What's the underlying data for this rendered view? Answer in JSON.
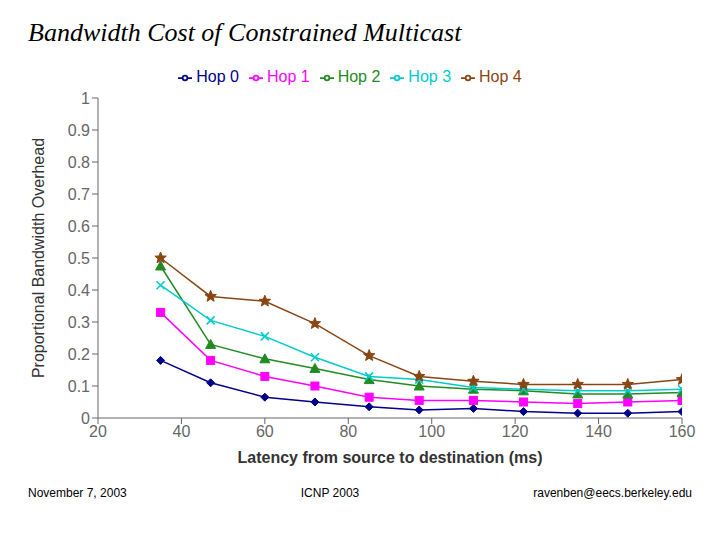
{
  "chart_data": {
    "type": "line",
    "title": "Bandwidth Cost of Constrained Multicast",
    "xlabel": "Latency from source to destination (ms)",
    "ylabel": "Proportional Bandwidth Overhead",
    "annotations": [
      "November 7, 2003",
      "ICNP 2003",
      "ravenben@eecs.berkeley.edu"
    ],
    "x": [
      35,
      47,
      60,
      72,
      85,
      97,
      110,
      122,
      135,
      147,
      160
    ],
    "xlim": [
      20,
      160
    ],
    "ylim": [
      0,
      1
    ],
    "xticks": [
      20,
      40,
      60,
      80,
      100,
      120,
      140,
      160
    ],
    "yticks": [
      0,
      0.1,
      0.2,
      0.3,
      0.4,
      0.5,
      0.6,
      0.7,
      0.8,
      0.9,
      1
    ],
    "grid": false,
    "legend": "top",
    "series": [
      {
        "name": "Hop 0",
        "color": "#00008B",
        "marker": "diamond",
        "values": [
          0.18,
          0.11,
          0.065,
          0.05,
          0.035,
          0.025,
          0.03,
          0.02,
          0.015,
          0.015,
          0.02
        ]
      },
      {
        "name": "Hop 1",
        "color": "#FF00FF",
        "marker": "square",
        "values": [
          0.33,
          0.18,
          0.13,
          0.1,
          0.065,
          0.055,
          0.055,
          0.05,
          0.045,
          0.05,
          0.055
        ]
      },
      {
        "name": "Hop 2",
        "color": "#228B22",
        "marker": "triangle",
        "values": [
          0.475,
          0.23,
          0.185,
          0.155,
          0.12,
          0.1,
          0.09,
          0.085,
          0.075,
          0.075,
          0.08
        ]
      },
      {
        "name": "Hop 3",
        "color": "#00CCCC",
        "marker": "cross",
        "values": [
          0.415,
          0.305,
          0.255,
          0.19,
          0.13,
          0.12,
          0.095,
          0.09,
          0.085,
          0.085,
          0.09
        ]
      },
      {
        "name": "Hop 4",
        "color": "#8B4513",
        "marker": "star",
        "values": [
          0.5,
          0.38,
          0.365,
          0.295,
          0.195,
          0.13,
          0.115,
          0.105,
          0.105,
          0.105,
          0.12
        ]
      }
    ]
  }
}
